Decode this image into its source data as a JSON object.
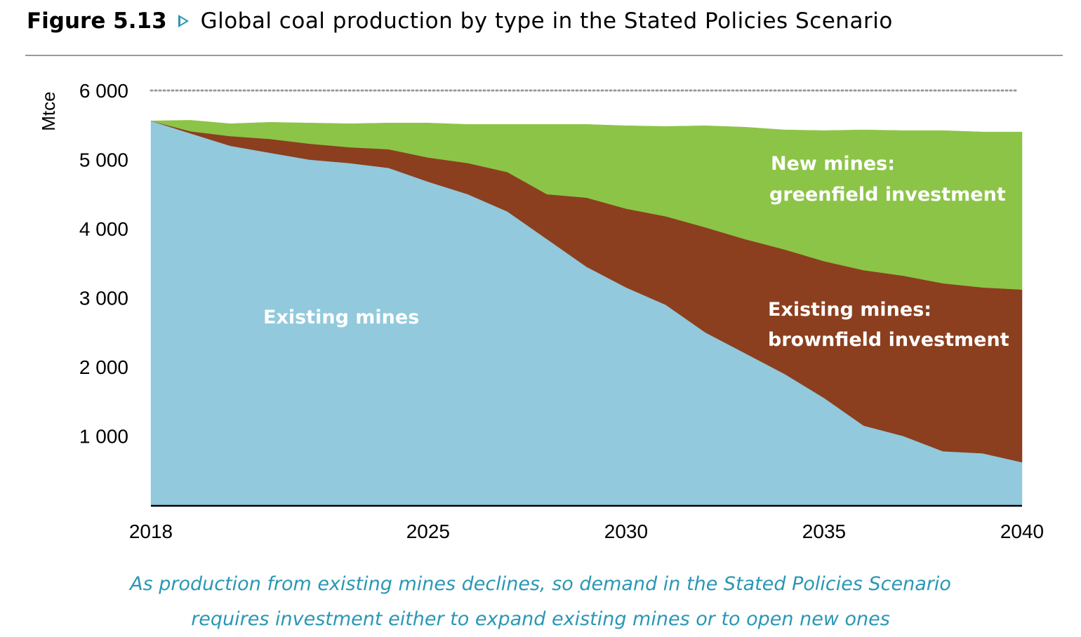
{
  "figure": {
    "label": "Figure 5.13",
    "title": "Global coal production by type in the Stated Policies Scenario"
  },
  "caption": {
    "line1": "As production from existing mines declines, so demand in the Stated Policies Scenario",
    "line2": "requires investment either to expand existing mines or to open new ones"
  },
  "colors": {
    "existing": "#92c9dc",
    "brownfield": "#8b3f1f",
    "greenfield": "#8cc447",
    "axis": "#000000",
    "gridline": "#9a9a9a"
  },
  "chart_data": {
    "type": "area",
    "stacked": true,
    "title": "Global coal production by type in the Stated Policies Scenario",
    "ylabel": "Mtce",
    "xlabel": "",
    "xlim": [
      2018,
      2040
    ],
    "ylim": [
      0,
      6000
    ],
    "yticks": [
      1000,
      2000,
      3000,
      4000,
      5000,
      6000
    ],
    "ytick_labels": [
      "1 000",
      "2 000",
      "3 000",
      "4 000",
      "5 000",
      "6 000"
    ],
    "xticks": [
      2018,
      2025,
      2030,
      2035,
      2040
    ],
    "xtick_labels": [
      "2018",
      "2025",
      "2030",
      "2035",
      "2040"
    ],
    "grid": "dotted line at 6 000 only",
    "x": [
      2018,
      2019,
      2020,
      2021,
      2022,
      2023,
      2024,
      2025,
      2026,
      2027,
      2028,
      2029,
      2030,
      2031,
      2032,
      2033,
      2034,
      2035,
      2036,
      2037,
      2038,
      2039,
      2040
    ],
    "series": [
      {
        "name": "Existing mines",
        "color": "#92c9dc",
        "values": [
          5560,
          5380,
          5200,
          5100,
          5000,
          4950,
          4880,
          4680,
          4500,
          4250,
          3850,
          3450,
          3150,
          2900,
          2500,
          2200,
          1900,
          1550,
          1150,
          1000,
          780,
          750,
          620
        ]
      },
      {
        "name": "Existing mines: brownfield investment",
        "color": "#8b3f1f",
        "values": [
          0,
          30,
          140,
          200,
          230,
          230,
          270,
          350,
          450,
          570,
          650,
          1000,
          1140,
          1280,
          1520,
          1650,
          1800,
          1980,
          2250,
          2320,
          2430,
          2400,
          2500
        ]
      },
      {
        "name": "New mines: greenfield investment",
        "color": "#8cc447",
        "values": [
          0,
          160,
          180,
          240,
          300,
          340,
          380,
          500,
          560,
          690,
          1010,
          1060,
          1200,
          1300,
          1470,
          1620,
          1730,
          1890,
          2030,
          2100,
          2210,
          2250,
          2280
        ]
      }
    ],
    "annotations": [
      {
        "text": "Existing mines",
        "series": "Existing mines"
      },
      {
        "text": "New mines:",
        "series": "New mines: greenfield investment"
      },
      {
        "text": "greenfield investment",
        "series": "New mines: greenfield investment"
      },
      {
        "text": "Existing mines:",
        "series": "Existing mines: brownfield investment"
      },
      {
        "text": "brownfield investment",
        "series": "Existing mines: brownfield investment"
      }
    ]
  }
}
